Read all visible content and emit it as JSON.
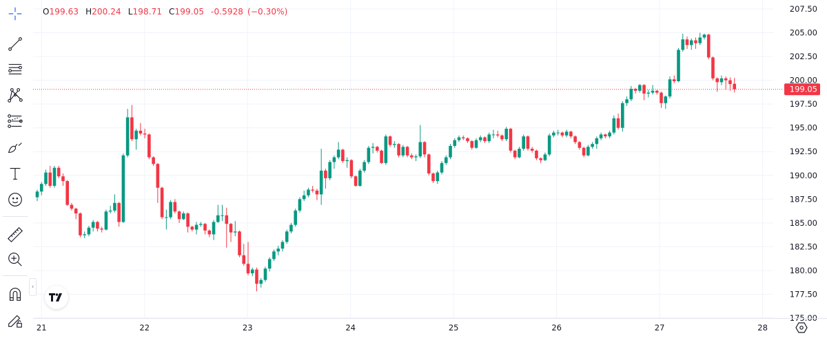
{
  "legend": {
    "o_label": "O",
    "o": "199.63",
    "h_label": "H",
    "h": "200.24",
    "l_label": "L",
    "l": "198.71",
    "c_label": "C",
    "c": "199.05",
    "change": "-0.5928",
    "change_pct": "(−0.30%)"
  },
  "toolbar": {
    "tools": [
      "crosshair-icon",
      "trend-line-icon",
      "horizontal-lines-icon",
      "pattern-icon",
      "fib-icon",
      "brush-icon",
      "text-icon",
      "emoji-icon",
      "ruler-icon",
      "zoom-in-icon",
      "magnet-icon",
      "lock-drawings-icon"
    ]
  },
  "colors": {
    "up": "#089981",
    "down": "#f23645",
    "grid": "#f0f3fa",
    "accent": "#2962ff",
    "price_line": "#f23645",
    "text": "#131722"
  },
  "chart_data": {
    "type": "candlestick",
    "interval_note": "",
    "ylim": [
      175,
      207.5
    ],
    "y_ticks": [
      "207.50",
      "205.00",
      "202.50",
      "200.00",
      "197.50",
      "195.00",
      "192.50",
      "190.00",
      "187.50",
      "185.00",
      "182.50",
      "180.00",
      "177.50",
      "175.00"
    ],
    "x_ticks": [
      "21",
      "22",
      "23",
      "24",
      "25",
      "26",
      "27",
      "28"
    ],
    "grid": true,
    "last_price": "199.05",
    "candles": [
      [
        187.7,
        188.5,
        187.3,
        188.3
      ],
      [
        188.3,
        189.3,
        187.9,
        189.1
      ],
      [
        189.1,
        190.6,
        188.9,
        190.3
      ],
      [
        190.3,
        191.0,
        188.7,
        188.9
      ],
      [
        188.9,
        191.0,
        188.7,
        190.8
      ],
      [
        190.8,
        191.0,
        189.7,
        189.9
      ],
      [
        189.9,
        190.2,
        188.9,
        189.4
      ],
      [
        189.4,
        189.5,
        186.8,
        186.9
      ],
      [
        186.9,
        187.1,
        186.3,
        186.5
      ],
      [
        186.5,
        186.6,
        185.4,
        186.0
      ],
      [
        186.0,
        186.1,
        183.5,
        183.7
      ],
      [
        183.7,
        184.1,
        183.4,
        183.8
      ],
      [
        183.8,
        184.7,
        183.6,
        184.5
      ],
      [
        184.5,
        185.3,
        184.1,
        185.1
      ],
      [
        185.1,
        185.2,
        184.1,
        184.4
      ],
      [
        184.4,
        184.6,
        184.0,
        184.3
      ],
      [
        184.3,
        186.4,
        184.2,
        186.2
      ],
      [
        186.2,
        186.8,
        186.0,
        186.3
      ],
      [
        186.3,
        188.0,
        186.1,
        187.1
      ],
      [
        187.1,
        187.2,
        184.6,
        185.1
      ],
      [
        185.1,
        192.3,
        185.0,
        192.1
      ],
      [
        192.1,
        197.0,
        191.9,
        196.1
      ],
      [
        196.1,
        197.4,
        193.6,
        193.8
      ],
      [
        193.8,
        194.9,
        192.7,
        194.7
      ],
      [
        194.7,
        195.5,
        194.2,
        194.4
      ],
      [
        194.4,
        194.9,
        193.9,
        194.3
      ],
      [
        194.3,
        194.4,
        191.7,
        191.9
      ],
      [
        191.9,
        192.0,
        191.0,
        191.2
      ],
      [
        191.2,
        191.3,
        187.1,
        188.7
      ],
      [
        188.7,
        188.8,
        185.4,
        185.6
      ],
      [
        185.6,
        186.4,
        184.3,
        185.6
      ],
      [
        185.6,
        187.4,
        185.4,
        187.2
      ],
      [
        187.2,
        187.5,
        186.0,
        186.2
      ],
      [
        186.2,
        186.3,
        185.0,
        185.4
      ],
      [
        185.4,
        186.2,
        185.3,
        186.0
      ],
      [
        186.0,
        186.1,
        184.0,
        184.6
      ],
      [
        184.6,
        184.7,
        184.1,
        184.3
      ],
      [
        184.3,
        185.1,
        183.8,
        184.8
      ],
      [
        184.8,
        185.1,
        184.6,
        184.9
      ],
      [
        184.9,
        185.0,
        183.8,
        184.2
      ],
      [
        184.2,
        184.3,
        183.5,
        183.8
      ],
      [
        183.8,
        185.3,
        183.2,
        185.1
      ],
      [
        185.1,
        186.9,
        185.0,
        185.8
      ],
      [
        185.8,
        186.9,
        185.2,
        185.8
      ],
      [
        185.8,
        186.6,
        182.4,
        184.9
      ],
      [
        184.9,
        185.0,
        183.0,
        184.0
      ],
      [
        184.0,
        185.2,
        183.6,
        184.1
      ],
      [
        184.1,
        184.2,
        181.4,
        181.6
      ],
      [
        181.6,
        182.8,
        180.5,
        180.7
      ],
      [
        180.7,
        183.0,
        179.5,
        179.7
      ],
      [
        179.7,
        180.3,
        179.4,
        180.1
      ],
      [
        180.1,
        180.3,
        177.8,
        178.6
      ],
      [
        178.6,
        179.2,
        178.2,
        179.0
      ],
      [
        179.0,
        180.4,
        178.8,
        180.2
      ],
      [
        180.2,
        181.4,
        179.9,
        181.2
      ],
      [
        181.2,
        182.2,
        181.0,
        182.0
      ],
      [
        182.0,
        182.6,
        181.6,
        182.3
      ],
      [
        182.3,
        183.2,
        182.0,
        183.0
      ],
      [
        183.0,
        184.3,
        182.8,
        184.1
      ],
      [
        184.1,
        185.0,
        183.9,
        184.8
      ],
      [
        184.8,
        186.5,
        184.6,
        186.3
      ],
      [
        186.3,
        187.7,
        186.1,
        187.5
      ],
      [
        187.5,
        188.4,
        187.3,
        187.9
      ],
      [
        187.9,
        188.7,
        187.7,
        188.5
      ],
      [
        188.5,
        188.9,
        188.2,
        188.4
      ],
      [
        188.4,
        188.6,
        187.4,
        188.0
      ],
      [
        188.0,
        192.8,
        186.9,
        190.5
      ],
      [
        190.5,
        190.7,
        188.6,
        189.7
      ],
      [
        189.7,
        191.6,
        189.5,
        191.4
      ],
      [
        191.4,
        192.1,
        190.7,
        191.9
      ],
      [
        191.9,
        193.5,
        191.7,
        192.7
      ],
      [
        192.7,
        192.8,
        191.3,
        191.5
      ],
      [
        191.5,
        191.9,
        190.8,
        191.6
      ],
      [
        191.6,
        191.7,
        189.7,
        189.9
      ],
      [
        189.9,
        190.0,
        188.8,
        188.9
      ],
      [
        188.9,
        190.7,
        188.8,
        190.5
      ],
      [
        190.5,
        191.6,
        190.3,
        191.4
      ],
      [
        191.4,
        193.1,
        191.2,
        192.9
      ],
      [
        192.9,
        193.4,
        192.3,
        193.0
      ],
      [
        193.0,
        193.1,
        192.4,
        192.6
      ],
      [
        192.6,
        192.7,
        191.2,
        191.3
      ],
      [
        191.3,
        194.3,
        191.1,
        194.1
      ],
      [
        194.1,
        194.2,
        193.0,
        193.2
      ],
      [
        193.2,
        193.6,
        192.9,
        193.3
      ],
      [
        193.3,
        193.4,
        191.9,
        192.1
      ],
      [
        192.1,
        193.2,
        191.9,
        193.0
      ],
      [
        193.0,
        193.1,
        191.9,
        192.1
      ],
      [
        192.1,
        192.3,
        191.7,
        191.9
      ],
      [
        191.9,
        192.2,
        191.5,
        192.0
      ],
      [
        192.0,
        195.3,
        191.8,
        193.5
      ],
      [
        193.5,
        193.6,
        191.9,
        192.2
      ],
      [
        192.2,
        192.3,
        190.0,
        190.2
      ],
      [
        190.2,
        190.3,
        189.2,
        189.4
      ],
      [
        189.4,
        190.5,
        189.1,
        190.3
      ],
      [
        190.3,
        191.5,
        190.1,
        191.3
      ],
      [
        191.3,
        192.1,
        191.1,
        191.9
      ],
      [
        191.9,
        193.3,
        191.7,
        193.1
      ],
      [
        193.1,
        193.9,
        192.9,
        193.7
      ],
      [
        193.7,
        194.2,
        193.5,
        194.0
      ],
      [
        194.0,
        194.2,
        193.7,
        193.9
      ],
      [
        193.9,
        194.0,
        193.4,
        193.6
      ],
      [
        193.6,
        193.7,
        192.7,
        192.9
      ],
      [
        192.9,
        193.9,
        192.8,
        193.7
      ],
      [
        193.7,
        194.2,
        193.5,
        194.0
      ],
      [
        194.0,
        194.1,
        193.4,
        193.6
      ],
      [
        193.6,
        194.5,
        193.4,
        194.3
      ],
      [
        194.3,
        194.8,
        193.9,
        194.3
      ],
      [
        194.3,
        194.7,
        194.0,
        194.2
      ],
      [
        194.2,
        194.3,
        193.6,
        193.8
      ],
      [
        193.8,
        195.1,
        193.6,
        194.9
      ],
      [
        194.9,
        195.0,
        192.4,
        192.6
      ],
      [
        192.6,
        192.7,
        191.7,
        191.9
      ],
      [
        191.9,
        193.0,
        191.8,
        192.8
      ],
      [
        192.8,
        194.3,
        192.6,
        194.1
      ],
      [
        194.1,
        194.2,
        192.6,
        192.8
      ],
      [
        192.8,
        193.0,
        192.4,
        192.6
      ],
      [
        192.6,
        192.7,
        191.6,
        191.8
      ],
      [
        191.8,
        191.9,
        191.3,
        191.6
      ],
      [
        191.6,
        192.4,
        191.5,
        192.2
      ],
      [
        192.2,
        194.4,
        192.0,
        194.2
      ],
      [
        194.2,
        194.7,
        194.0,
        194.5
      ],
      [
        194.5,
        194.8,
        194.2,
        194.5
      ],
      [
        194.5,
        194.6,
        194.0,
        194.2
      ],
      [
        194.2,
        194.8,
        194.0,
        194.6
      ],
      [
        194.6,
        194.7,
        193.9,
        194.1
      ],
      [
        194.1,
        194.2,
        193.3,
        193.5
      ],
      [
        193.5,
        193.6,
        192.7,
        192.9
      ],
      [
        192.9,
        193.0,
        191.9,
        192.1
      ],
      [
        192.1,
        193.2,
        192.0,
        193.0
      ],
      [
        193.0,
        193.5,
        192.8,
        193.3
      ],
      [
        193.3,
        194.1,
        192.8,
        193.9
      ],
      [
        193.9,
        194.5,
        193.7,
        194.3
      ],
      [
        194.3,
        194.4,
        193.9,
        194.1
      ],
      [
        194.1,
        194.7,
        193.9,
        194.5
      ],
      [
        194.5,
        196.3,
        194.3,
        196.0
      ],
      [
        196.0,
        196.5,
        194.8,
        195.0
      ],
      [
        195.0,
        197.8,
        194.6,
        197.6
      ],
      [
        197.6,
        198.3,
        197.3,
        198.0
      ],
      [
        198.0,
        199.4,
        197.8,
        199.1
      ],
      [
        199.1,
        199.2,
        198.6,
        198.9
      ],
      [
        198.9,
        199.6,
        198.7,
        199.5
      ],
      [
        199.5,
        199.6,
        197.9,
        198.6
      ],
      [
        198.6,
        199.0,
        198.2,
        198.7
      ],
      [
        198.7,
        199.5,
        198.5,
        198.9
      ],
      [
        198.9,
        199.0,
        198.5,
        198.7
      ],
      [
        198.7,
        198.8,
        197.1,
        197.6
      ],
      [
        197.6,
        198.4,
        197.0,
        198.3
      ],
      [
        198.3,
        200.4,
        198.1,
        200.1
      ],
      [
        200.1,
        200.5,
        199.7,
        199.9
      ],
      [
        199.9,
        203.4,
        199.8,
        203.2
      ],
      [
        203.2,
        204.9,
        203.0,
        204.3
      ],
      [
        204.3,
        204.6,
        203.3,
        203.7
      ],
      [
        203.7,
        204.4,
        203.2,
        204.2
      ],
      [
        204.2,
        204.5,
        203.3,
        203.9
      ],
      [
        203.9,
        205.0,
        203.7,
        204.5
      ],
      [
        204.5,
        204.9,
        204.3,
        204.8
      ],
      [
        204.8,
        204.9,
        202.2,
        202.4
      ],
      [
        202.4,
        202.5,
        200.0,
        200.2
      ],
      [
        200.2,
        200.3,
        198.8,
        199.8
      ],
      [
        199.8,
        200.5,
        199.5,
        200.2
      ],
      [
        200.2,
        200.4,
        199.0,
        200.0
      ],
      [
        200.0,
        200.3,
        198.9,
        199.6
      ],
      [
        199.63,
        200.24,
        198.71,
        199.05
      ]
    ]
  }
}
